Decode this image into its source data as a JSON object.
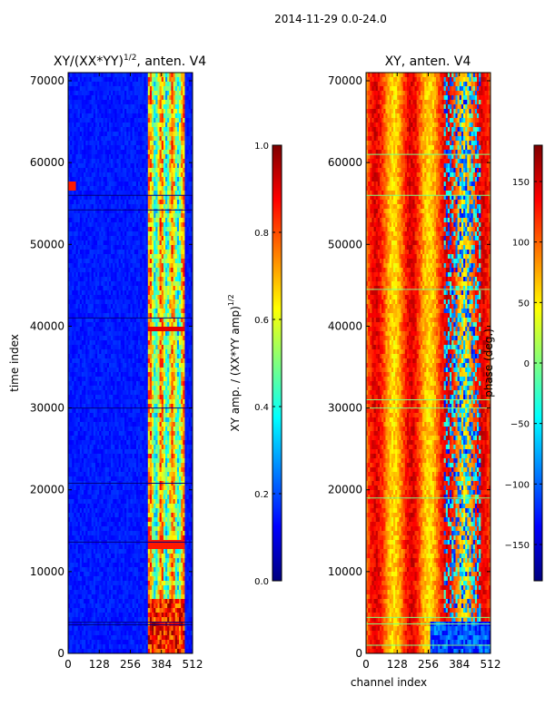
{
  "suptitle": "2014-11-29 0.0-24.0",
  "colors": {
    "jet": [
      "#00007f",
      "#0000ff",
      "#007fff",
      "#00ffff",
      "#7fff7f",
      "#ffff00",
      "#ff7f00",
      "#ff0000",
      "#7f0000"
    ],
    "frame": "#000000"
  },
  "chart_data": [
    {
      "type": "heatmap",
      "title_main": "XY/(XX*YY)",
      "title_sup": "1/2",
      "title_tail": ", anten. V4",
      "xlabel": "",
      "ylabel": "time index",
      "xlim": [
        0,
        512
      ],
      "ylim": [
        0,
        71000
      ],
      "xticks": [
        0,
        128,
        256,
        384,
        512
      ],
      "xticklabels": [
        "0",
        "128",
        "256",
        "384",
        "512"
      ],
      "yticks": [
        0,
        10000,
        20000,
        30000,
        40000,
        50000,
        60000,
        70000
      ],
      "yticklabels": [
        "0",
        "10000",
        "20000",
        "30000",
        "40000",
        "50000",
        "60000",
        "70000"
      ],
      "colorbar": {
        "range": [
          0.0,
          1.0
        ],
        "ticks": [
          0.0,
          0.2,
          0.4,
          0.6,
          0.8,
          1.0
        ],
        "ticklabels": [
          "0.0",
          "0.2",
          "0.4",
          "0.6",
          "0.8",
          "1.0"
        ],
        "label_main": "XY amp. / (XX*YY amp)",
        "label_sup": "1/2"
      }
    },
    {
      "type": "heatmap",
      "title_main": "XY, anten. V4",
      "xlabel": "channel index",
      "ylabel": "",
      "xlim": [
        0,
        512
      ],
      "ylim": [
        0,
        71000
      ],
      "xticks": [
        0,
        128,
        256,
        384,
        512
      ],
      "xticklabels": [
        "0",
        "128",
        "256",
        "384",
        "512"
      ],
      "yticks": [
        0,
        10000,
        20000,
        30000,
        40000,
        50000,
        60000,
        70000
      ],
      "yticklabels": [
        "0",
        "10000",
        "20000",
        "30000",
        "40000",
        "50000",
        "60000",
        "70000"
      ],
      "colorbar": {
        "range": [
          -180,
          180
        ],
        "ticks": [
          -150,
          -100,
          -50,
          0,
          50,
          100,
          150
        ],
        "ticklabels": [
          "−150",
          "−100",
          "−50",
          "0",
          "50",
          "100",
          "150"
        ],
        "label_main": "phase (deg.)"
      }
    }
  ]
}
